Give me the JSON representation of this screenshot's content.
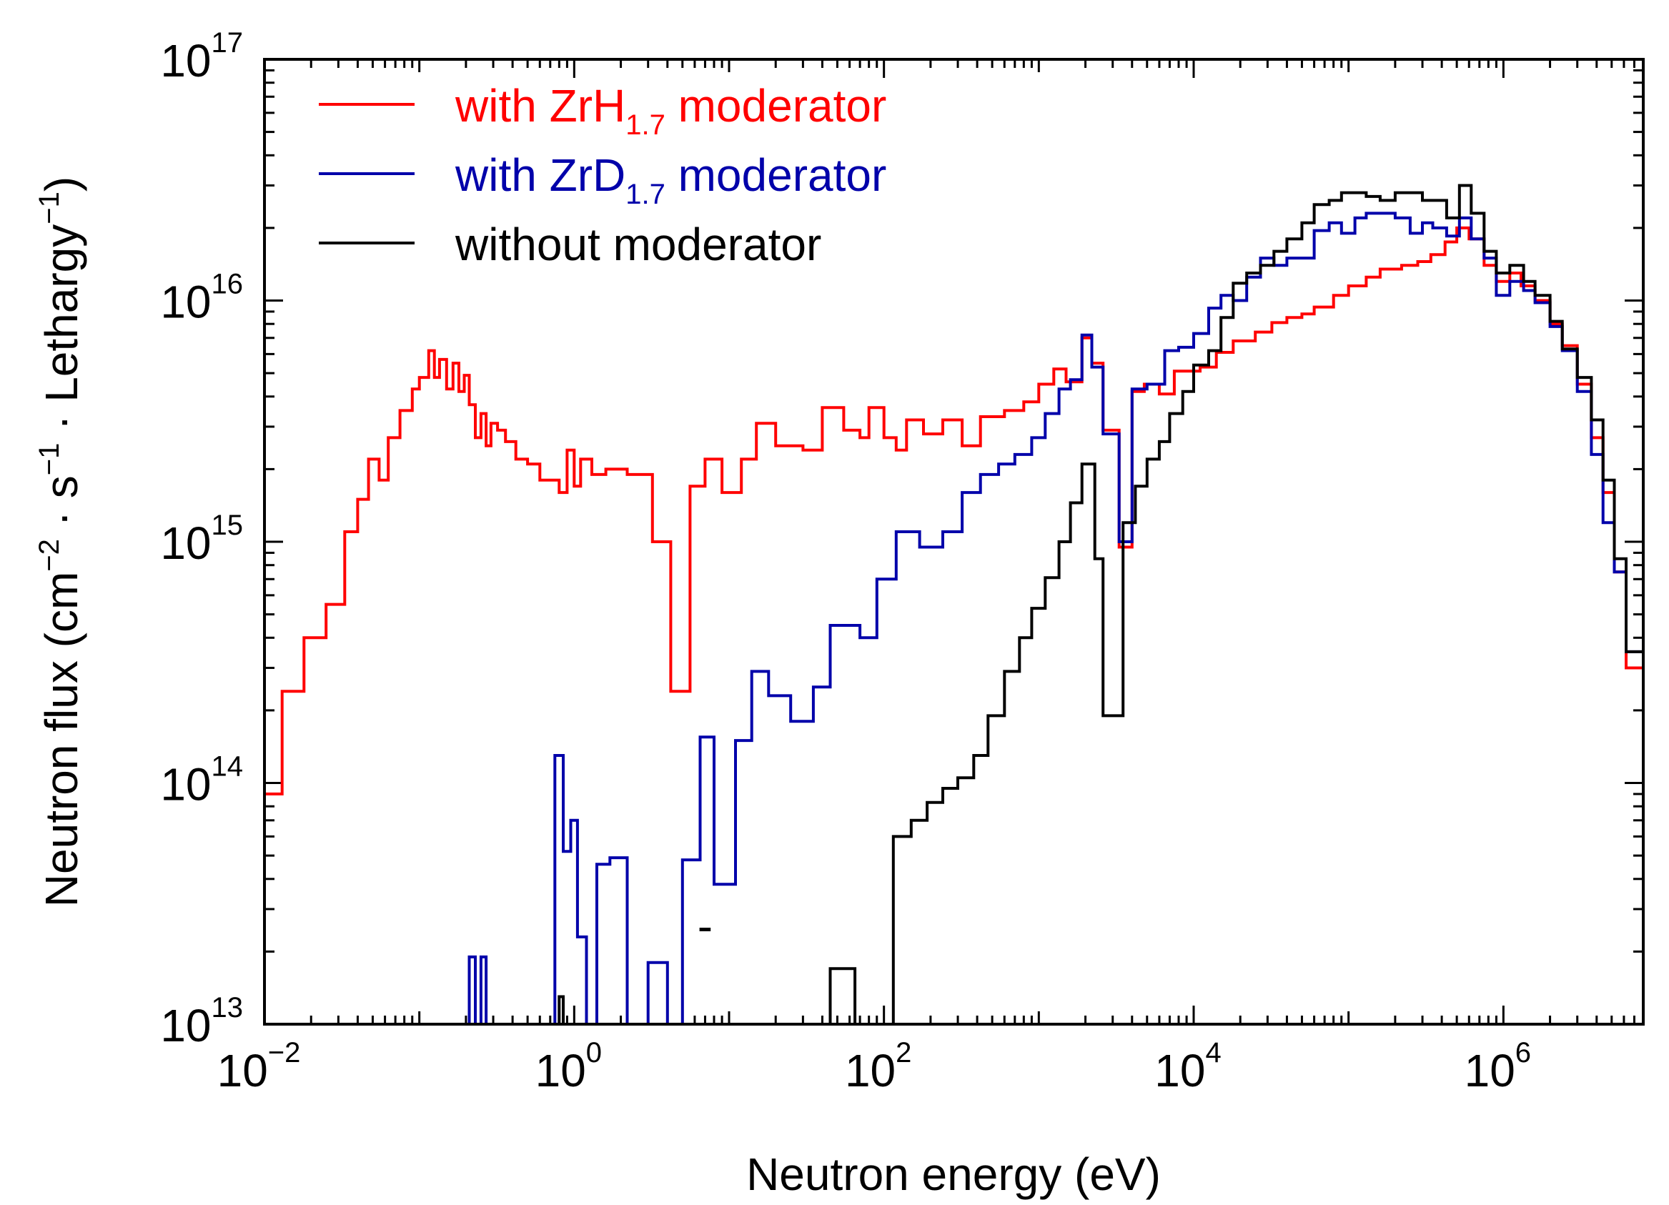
{
  "chart_data": {
    "type": "line",
    "step": true,
    "xscale": "log",
    "yscale": "log",
    "xlim": [
      0.01,
      8000000
    ],
    "ylim": [
      10000000000000.0,
      1e+17
    ],
    "xlabel": "Neutron energy (eV)",
    "ylabel": {
      "part1": "Neutron flux (cm",
      "sup1": "−2",
      "part2": " · s",
      "sup2": "−1",
      "part3": " · Lethargy",
      "sup3": "−1",
      "part4": ")"
    },
    "x_ticks": [
      {
        "value": 0.01,
        "base": "10",
        "exp": "−2"
      },
      {
        "value": 1,
        "base": "10",
        "exp": "0"
      },
      {
        "value": 100,
        "base": "10",
        "exp": "2"
      },
      {
        "value": 10000,
        "base": "10",
        "exp": "4"
      },
      {
        "value": 1000000,
        "base": "10",
        "exp": "6"
      }
    ],
    "y_ticks": [
      {
        "value": 10000000000000.0,
        "base": "10",
        "exp": "13"
      },
      {
        "value": 100000000000000.0,
        "base": "10",
        "exp": "14"
      },
      {
        "value": 1000000000000000.0,
        "base": "10",
        "exp": "15"
      },
      {
        "value": 1e+16,
        "base": "10",
        "exp": "16"
      },
      {
        "value": 1e+17,
        "base": "10",
        "exp": "17"
      }
    ],
    "legend_position": "top-left",
    "series": [
      {
        "name": "with ZrH1.7 moderator",
        "label_main": "with ZrH",
        "label_sub": "1.7",
        "label_rest": " moderator",
        "color": "#ff0000",
        "points": [
          [
            0.01,
            90000000000000.0
          ],
          [
            0.013,
            240000000000000.0
          ],
          [
            0.018,
            400000000000000.0
          ],
          [
            0.025,
            550000000000000.0
          ],
          [
            0.033,
            1100000000000000.0
          ],
          [
            0.04,
            1500000000000000.0
          ],
          [
            0.047,
            2200000000000000.0
          ],
          [
            0.055,
            1800000000000000.0
          ],
          [
            0.063,
            2700000000000000.0
          ],
          [
            0.075,
            3500000000000000.0
          ],
          [
            0.09,
            4300000000000000.0
          ],
          [
            0.1,
            4800000000000000.0
          ],
          [
            0.115,
            6200000000000000.0
          ],
          [
            0.125,
            4800000000000000.0
          ],
          [
            0.135,
            5700000000000000.0
          ],
          [
            0.15,
            4300000000000000.0
          ],
          [
            0.165,
            5500000000000000.0
          ],
          [
            0.18,
            4200000000000000.0
          ],
          [
            0.195,
            4900000000000000.0
          ],
          [
            0.21,
            3700000000000000.0
          ],
          [
            0.23,
            2700000000000000.0
          ],
          [
            0.25,
            3400000000000000.0
          ],
          [
            0.27,
            2500000000000000.0
          ],
          [
            0.29,
            3100000000000000.0
          ],
          [
            0.32,
            2900000000000000.0
          ],
          [
            0.36,
            2600000000000000.0
          ],
          [
            0.42,
            2200000000000000.0
          ],
          [
            0.5,
            2100000000000000.0
          ],
          [
            0.6,
            1800000000000000.0
          ],
          [
            0.7,
            1800000000000000.0
          ],
          [
            0.8,
            1600000000000000.0
          ],
          [
            0.9,
            2400000000000000.0
          ],
          [
            1.0,
            1700000000000000.0
          ],
          [
            1.1,
            2200000000000000.0
          ],
          [
            1.3,
            1900000000000000.0
          ],
          [
            1.6,
            2000000000000000.0
          ],
          [
            2.2,
            1900000000000000.0
          ],
          [
            3.2,
            1000000000000000.0
          ],
          [
            4.2,
            240000000000000.0
          ],
          [
            5.6,
            1700000000000000.0
          ],
          [
            7,
            2200000000000000.0
          ],
          [
            9,
            1600000000000000.0
          ],
          [
            12,
            2200000000000000.0
          ],
          [
            15,
            3100000000000000.0
          ],
          [
            20,
            2500000000000000.0
          ],
          [
            30,
            2400000000000000.0
          ],
          [
            40,
            3600000000000000.0
          ],
          [
            55,
            2900000000000000.0
          ],
          [
            70,
            2700000000000000.0
          ],
          [
            80,
            3600000000000000.0
          ],
          [
            100,
            2700000000000000.0
          ],
          [
            120,
            2400000000000000.0
          ],
          [
            140,
            3200000000000000.0
          ],
          [
            180,
            2800000000000000.0
          ],
          [
            240,
            3200000000000000.0
          ],
          [
            320,
            2500000000000000.0
          ],
          [
            420,
            3300000000000000.0
          ],
          [
            600,
            3500000000000000.0
          ],
          [
            800,
            3800000000000000.0
          ],
          [
            1000,
            4500000000000000.0
          ],
          [
            1250,
            5200000000000000.0
          ],
          [
            1500,
            4600000000000000.0
          ],
          [
            1900,
            7000000000000000.0
          ],
          [
            2200,
            5500000000000000.0
          ],
          [
            2600,
            2900000000000000.0
          ],
          [
            3300,
            950000000000000.0
          ],
          [
            4000,
            4200000000000000.0
          ],
          [
            4800,
            4500000000000000.0
          ],
          [
            6000,
            4100000000000000.0
          ],
          [
            7500,
            5100000000000000.0
          ],
          [
            11000,
            5300000000000000.0
          ],
          [
            14000,
            6100000000000000.0
          ],
          [
            18000,
            6800000000000000.0
          ],
          [
            25000,
            7400000000000000.0
          ],
          [
            32000,
            8100000000000000.0
          ],
          [
            40000,
            8500000000000000.0
          ],
          [
            50000,
            8800000000000000.0
          ],
          [
            60000,
            9400000000000000.0
          ],
          [
            80000,
            1.05e+16
          ],
          [
            100000,
            1.15e+16
          ],
          [
            130000,
            1.25e+16
          ],
          [
            160000,
            1.35e+16
          ],
          [
            220000,
            1.4e+16
          ],
          [
            280000,
            1.45e+16
          ],
          [
            340000,
            1.55e+16
          ],
          [
            420000,
            1.75e+16
          ],
          [
            500000,
            2e+16
          ],
          [
            600000,
            1.8e+16
          ],
          [
            750000,
            1.4e+16
          ],
          [
            900000,
            1.2e+16
          ],
          [
            1100000,
            1.3e+16
          ],
          [
            1300000,
            1.15e+16
          ],
          [
            1600000,
            1e+16
          ],
          [
            2000000,
            8000000000000000.0
          ],
          [
            2400000,
            6500000000000000.0
          ],
          [
            3000000,
            4500000000000000.0
          ],
          [
            3700000,
            2700000000000000.0
          ],
          [
            4400000,
            1600000000000000.0
          ],
          [
            5200000,
            750000000000000.0
          ],
          [
            6200000,
            300000000000000.0
          ],
          [
            8000000,
            300000000000000.0
          ]
        ]
      },
      {
        "name": "with ZrD1.7 moderator",
        "label_main": "with ZrD",
        "label_sub": "1.7",
        "label_rest": " moderator",
        "color": "#0000aa",
        "points": [
          [
            0.19,
            10000000000000.0
          ],
          [
            0.21,
            19000000000000.0
          ],
          [
            0.23,
            10000000000000.0
          ],
          [
            0.25,
            19000000000000.0
          ],
          [
            0.27,
            10000000000000.0
          ],
          [
            0.67,
            10000000000000.0
          ],
          [
            0.75,
            130000000000000.0
          ],
          [
            0.85,
            52000000000000.0
          ],
          [
            0.95,
            70000000000000.0
          ],
          [
            1.05,
            23000000000000.0
          ],
          [
            1.2,
            10000000000000.0
          ],
          [
            1.4,
            46000000000000.0
          ],
          [
            1.7,
            49000000000000.0
          ],
          [
            2.2,
            10000000000000.0
          ],
          [
            3.0,
            18000000000000.0
          ],
          [
            4.0,
            10000000000000.0
          ],
          [
            5.0,
            48000000000000.0
          ],
          [
            6.5,
            155000000000000.0
          ],
          [
            8.0,
            38000000000000.0
          ],
          [
            11,
            150000000000000.0
          ],
          [
            14,
            290000000000000.0
          ],
          [
            18,
            230000000000000.0
          ],
          [
            25,
            180000000000000.0
          ],
          [
            35,
            250000000000000.0
          ],
          [
            45,
            450000000000000.0
          ],
          [
            70,
            400000000000000.0
          ],
          [
            90,
            700000000000000.0
          ],
          [
            120,
            1100000000000000.0
          ],
          [
            170,
            950000000000000.0
          ],
          [
            240,
            1100000000000000.0
          ],
          [
            320,
            1600000000000000.0
          ],
          [
            420,
            1900000000000000.0
          ],
          [
            550,
            2100000000000000.0
          ],
          [
            700,
            2300000000000000.0
          ],
          [
            900,
            2700000000000000.0
          ],
          [
            1100,
            3400000000000000.0
          ],
          [
            1350,
            4300000000000000.0
          ],
          [
            1600,
            4700000000000000.0
          ],
          [
            1900,
            7200000000000000.0
          ],
          [
            2200,
            5300000000000000.0
          ],
          [
            2600,
            2800000000000000.0
          ],
          [
            3300,
            1000000000000000.0
          ],
          [
            4000,
            4300000000000000.0
          ],
          [
            5000,
            4500000000000000.0
          ],
          [
            6500,
            6200000000000000.0
          ],
          [
            8000,
            6400000000000000.0
          ],
          [
            10000,
            7300000000000000.0
          ],
          [
            12500,
            9300000000000000.0
          ],
          [
            15000,
            1.05e+16
          ],
          [
            18000,
            1e+16
          ],
          [
            22000,
            1.25e+16
          ],
          [
            27000,
            1.5e+16
          ],
          [
            33000,
            1.4e+16
          ],
          [
            40000,
            1.5e+16
          ],
          [
            50000,
            1.5e+16
          ],
          [
            60000,
            1.95e+16
          ],
          [
            75000,
            2.1e+16
          ],
          [
            90000,
            1.9e+16
          ],
          [
            110000,
            2.2e+16
          ],
          [
            130000,
            2.3e+16
          ],
          [
            160000,
            2.3e+16
          ],
          [
            200000,
            2.2e+16
          ],
          [
            250000,
            1.9e+16
          ],
          [
            300000,
            2.1e+16
          ],
          [
            350000,
            2e+16
          ],
          [
            430000,
            1.85e+16
          ],
          [
            520000,
            2.2e+16
          ],
          [
            620000,
            1.8e+16
          ],
          [
            750000,
            1.5e+16
          ],
          [
            900000,
            1.05e+16
          ],
          [
            1100000,
            1.2e+16
          ],
          [
            1350000,
            1.1e+16
          ],
          [
            1600000,
            9800000000000000.0
          ],
          [
            2000000,
            7800000000000000.0
          ],
          [
            2400000,
            6200000000000000.0
          ],
          [
            3000000,
            4200000000000000.0
          ],
          [
            3700000,
            2300000000000000.0
          ],
          [
            4400000,
            1200000000000000.0
          ],
          [
            5200000,
            750000000000000.0
          ],
          [
            6200000,
            350000000000000.0
          ],
          [
            8000000,
            350000000000000.0
          ]
        ]
      },
      {
        "name": "without moderator",
        "label_main": "without moderator",
        "label_sub": "",
        "label_rest": "",
        "color": "#000000",
        "points": [
          [
            0.75,
            10000000000000.0
          ],
          [
            0.8,
            13000000000000.0
          ],
          [
            0.85,
            10000000000000.0
          ],
          [
            40,
            10000000000000.0
          ],
          [
            45,
            17000000000000.0
          ],
          [
            60,
            17000000000000.0
          ],
          [
            65,
            10000000000000.0
          ],
          [
            110,
            10000000000000.0
          ],
          [
            115,
            60000000000000.0
          ],
          [
            150,
            70000000000000.0
          ],
          [
            190,
            83000000000000.0
          ],
          [
            240,
            95000000000000.0
          ],
          [
            300,
            105000000000000.0
          ],
          [
            380,
            130000000000000.0
          ],
          [
            470,
            190000000000000.0
          ],
          [
            600,
            290000000000000.0
          ],
          [
            750,
            400000000000000.0
          ],
          [
            900,
            530000000000000.0
          ],
          [
            1100,
            710000000000000.0
          ],
          [
            1350,
            1000000000000000.0
          ],
          [
            1600,
            1450000000000000.0
          ],
          [
            1900,
            2100000000000000.0
          ],
          [
            2300,
            850000000000000.0
          ],
          [
            2600,
            190000000000000.0
          ],
          [
            3000,
            190000000000000.0
          ],
          [
            3500,
            1200000000000000.0
          ],
          [
            4200,
            1700000000000000.0
          ],
          [
            5000,
            2200000000000000.0
          ],
          [
            6000,
            2600000000000000.0
          ],
          [
            7000,
            3400000000000000.0
          ],
          [
            8500,
            4200000000000000.0
          ],
          [
            10000,
            5400000000000000.0
          ],
          [
            12500,
            6200000000000000.0
          ],
          [
            15000,
            8500000000000000.0
          ],
          [
            18000,
            1.18e+16
          ],
          [
            22000,
            1.3e+16
          ],
          [
            27000,
            1.4e+16
          ],
          [
            33000,
            1.6e+16
          ],
          [
            40000,
            1.8e+16
          ],
          [
            50000,
            2.1e+16
          ],
          [
            60000,
            2.5e+16
          ],
          [
            75000,
            2.6e+16
          ],
          [
            90000,
            2.8e+16
          ],
          [
            110000,
            2.8e+16
          ],
          [
            130000,
            2.7e+16
          ],
          [
            160000,
            2.6e+16
          ],
          [
            200000,
            2.8e+16
          ],
          [
            250000,
            2.8e+16
          ],
          [
            300000,
            2.6e+16
          ],
          [
            350000,
            2.6e+16
          ],
          [
            430000,
            2.2e+16
          ],
          [
            520000,
            3e+16
          ],
          [
            620000,
            2.3e+16
          ],
          [
            750000,
            1.6e+16
          ],
          [
            900000,
            1.3e+16
          ],
          [
            1100000,
            1.4e+16
          ],
          [
            1350000,
            1.2e+16
          ],
          [
            1600000,
            1.05e+16
          ],
          [
            2000000,
            8200000000000000.0
          ],
          [
            2400000,
            6300000000000000.0
          ],
          [
            3000000,
            4800000000000000.0
          ],
          [
            3700000,
            3200000000000000.0
          ],
          [
            4400000,
            1800000000000000.0
          ],
          [
            5200000,
            850000000000000.0
          ],
          [
            6200000,
            350000000000000.0
          ],
          [
            8000000,
            350000000000000.0
          ]
        ]
      }
    ],
    "annotations": [
      {
        "text": "-",
        "x": 7.0,
        "y": 22000000000000.0
      }
    ]
  }
}
